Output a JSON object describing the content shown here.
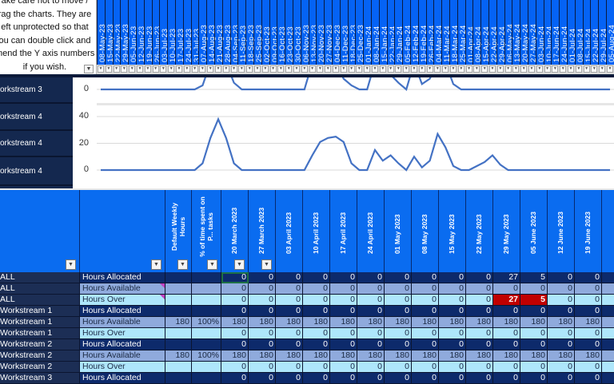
{
  "note": {
    "lines": [
      "ake care not to move /",
      "rag the charts. They are",
      "eft unprotected so that",
      "ou can double click and",
      "mend the Y axis numbers",
      "if you wish."
    ]
  },
  "timeline_dates": [
    "08-May-23",
    "15-May-23",
    "22-May-23",
    "29-May-23",
    "05-Jun-23",
    "12-Jun-23",
    "19-Jun-23",
    "26-Jun-23",
    "03-Jul-23",
    "10-Jul-23",
    "17-Jul-23",
    "24-Jul-23",
    "31-Jul-23",
    "07-Aug-23",
    "14-Aug-23",
    "21-Aug-23",
    "28-Aug-23",
    "04-Sep-23",
    "11-Sep-23",
    "18-Sep-23",
    "25-Sep-23",
    "02-Oct-23",
    "09-Oct-23",
    "16-Oct-23",
    "23-Oct-23",
    "30-Oct-23",
    "06-Nov-23",
    "13-Nov-23",
    "20-Nov-23",
    "27-Nov-23",
    "04-Dec-23",
    "11-Dec-23",
    "18-Dec-23",
    "25-Dec-23",
    "01-Jan-24",
    "08-Jan-24",
    "15-Jan-24",
    "22-Jan-24",
    "29-Jan-24",
    "05-Feb-24",
    "12-Feb-24",
    "19-Feb-24",
    "26-Feb-24",
    "04-Mar-24",
    "11-Mar-24",
    "18-Mar-24",
    "25-Mar-24",
    "01-Apr-24",
    "08-Apr-24",
    "15-Apr-24",
    "22-Apr-24",
    "29-Apr-24",
    "06-May-24",
    "13-May-24",
    "20-May-24",
    "27-May-24",
    "03-Jun-24",
    "10-Jun-24",
    "17-Jun-24",
    "24-Jun-24",
    "01-Jul-24",
    "08-Jul-24",
    "15-Jul-24",
    "22-Jul-24",
    "29-Jul-24",
    "05-Aug-24"
  ],
  "chart_labels": [
    "orkstream 3",
    "orkstream 4",
    "orkstream 4",
    "orkstream 4"
  ],
  "chart_data": [
    {
      "type": "line",
      "name": "Workstream 3",
      "yticks": [
        "0"
      ],
      "line_color": "#4472c4",
      "values": [
        0,
        0,
        0,
        0,
        0,
        0,
        0,
        0,
        0,
        0,
        0,
        0,
        0,
        3,
        20,
        20,
        20,
        5,
        0,
        0,
        0,
        0,
        0,
        0,
        0,
        0,
        0,
        20,
        20,
        20,
        20,
        8,
        3,
        0,
        0,
        20,
        10,
        11,
        5,
        0,
        20,
        4,
        8,
        20,
        20,
        4,
        0,
        0,
        0,
        0,
        0,
        0,
        0,
        0,
        0,
        0,
        0,
        0,
        0,
        0,
        0,
        0,
        0,
        0,
        0,
        0
      ]
    },
    {
      "type": "line",
      "name": "Workstream 4",
      "yticks": [
        "40",
        "20",
        "0"
      ],
      "ylim": [
        0,
        40
      ],
      "line_color": "#4472c4",
      "values": [
        0,
        0,
        0,
        0,
        0,
        0,
        0,
        0,
        0,
        0,
        0,
        0,
        0,
        5,
        24,
        38,
        24,
        5,
        0,
        0,
        0,
        0,
        0,
        0,
        0,
        0,
        0,
        11,
        21,
        24,
        25,
        21,
        5,
        0,
        0,
        15,
        7,
        11,
        5,
        0,
        10,
        2,
        7,
        27,
        17,
        3,
        0,
        0,
        3,
        6,
        11,
        4,
        0,
        0,
        0,
        0,
        0,
        0,
        0,
        0,
        0,
        0,
        0,
        0,
        0,
        0
      ]
    }
  ],
  "table": {
    "headers": {
      "a": "",
      "b": "",
      "c": "Default Weekly Hours",
      "d": "% of time spent on P... tasks",
      "weeks": [
        "20 March 2023",
        "27 March 2023",
        "03 April 2023",
        "10 April 2023",
        "17 April 2023",
        "24 April 2023",
        "01 May 2023",
        "08 May 2023",
        "15 May 2023",
        "22 May 2023",
        "29 May 2023",
        "05 June 2023",
        "12 June 2023",
        "19 June 2023",
        ""
      ]
    },
    "rows": [
      {
        "a": "ALL",
        "b": "Hours Allocated",
        "c": "",
        "d": "",
        "kind": "alloc",
        "v": [
          "0",
          "0",
          "0",
          "0",
          "0",
          "0",
          "0",
          "0",
          "0",
          "0",
          "27",
          "5",
          "0",
          "0",
          ""
        ]
      },
      {
        "a": "ALL",
        "b": "Hours Available",
        "c": "",
        "d": "",
        "kind": "avail",
        "comment": true,
        "v": [
          "0",
          "0",
          "0",
          "0",
          "0",
          "0",
          "0",
          "0",
          "0",
          "0",
          "0",
          "0",
          "0",
          "0",
          ""
        ]
      },
      {
        "a": "ALL",
        "b": "Hours Over",
        "c": "",
        "d": "",
        "kind": "over",
        "comment": true,
        "v": [
          "0",
          "0",
          "0",
          "0",
          "0",
          "0",
          "0",
          "0",
          "0",
          "0",
          "27",
          "5",
          "0",
          "0",
          ""
        ],
        "highlight": [
          10,
          11
        ]
      },
      {
        "a": "Workstream 1",
        "b": "Hours Allocated",
        "c": "",
        "d": "",
        "kind": "alloc",
        "v": [
          "0",
          "0",
          "0",
          "0",
          "0",
          "0",
          "0",
          "0",
          "0",
          "0",
          "0",
          "0",
          "0",
          "0",
          ""
        ]
      },
      {
        "a": "Workstream 1",
        "b": "Hours Available",
        "c": "180",
        "d": "100%",
        "kind": "avail",
        "v": [
          "180",
          "180",
          "180",
          "180",
          "180",
          "180",
          "180",
          "180",
          "180",
          "180",
          "180",
          "180",
          "180",
          "180",
          ""
        ]
      },
      {
        "a": "Workstream 1",
        "b": "Hours Over",
        "c": "",
        "d": "",
        "kind": "over",
        "v": [
          "0",
          "0",
          "0",
          "0",
          "0",
          "0",
          "0",
          "0",
          "0",
          "0",
          "0",
          "0",
          "0",
          "0",
          ""
        ]
      },
      {
        "a": "Workstream 2",
        "b": "Hours Allocated",
        "c": "",
        "d": "",
        "kind": "alloc",
        "v": [
          "0",
          "0",
          "0",
          "0",
          "0",
          "0",
          "0",
          "0",
          "0",
          "0",
          "0",
          "0",
          "0",
          "0",
          ""
        ]
      },
      {
        "a": "Workstream 2",
        "b": "Hours Available",
        "c": "180",
        "d": "100%",
        "kind": "avail",
        "v": [
          "180",
          "180",
          "180",
          "180",
          "180",
          "180",
          "180",
          "180",
          "180",
          "180",
          "180",
          "180",
          "180",
          "180",
          ""
        ]
      },
      {
        "a": "Workstream 2",
        "b": "Hours Over",
        "c": "",
        "d": "",
        "kind": "over",
        "v": [
          "0",
          "0",
          "0",
          "0",
          "0",
          "0",
          "0",
          "0",
          "0",
          "0",
          "0",
          "0",
          "0",
          "0",
          ""
        ]
      },
      {
        "a": "Workstream 3",
        "b": "Hours Allocated",
        "c": "",
        "d": "",
        "kind": "alloc",
        "v": [
          "0",
          "0",
          "0",
          "0",
          "0",
          "0",
          "0",
          "0",
          "0",
          "0",
          "0",
          "0",
          "0",
          "0",
          ""
        ]
      }
    ],
    "selected_cell": "20 March 2023 / ALL Hours Allocated"
  },
  "icons": {
    "filter": "dropdown-arrow-icon"
  },
  "colors": {
    "header_blue": "#0563f5",
    "alloc_row": "#0d2a6b",
    "avail_row": "#8faadc",
    "over_row": "#aee6fb",
    "over_alert": "#c00000"
  }
}
